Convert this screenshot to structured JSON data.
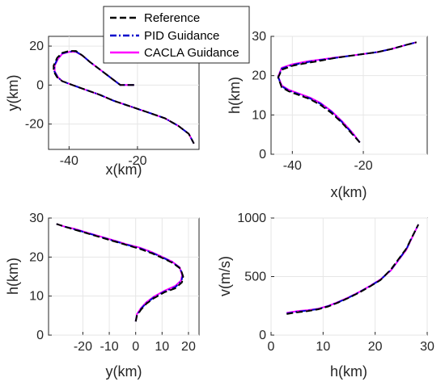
{
  "figure": {
    "legend": {
      "entries": [
        {
          "label": "Reference",
          "color": "#000000",
          "style": "dashed"
        },
        {
          "label": "PID Guidance",
          "color": "#0000cc",
          "style": "dashdot"
        },
        {
          "label": "CACLA Guidance",
          "color": "#ff00ff",
          "style": "solid"
        }
      ]
    }
  },
  "chart_data": [
    {
      "type": "line",
      "xlabel": "x(km)",
      "ylabel": "y(km)",
      "xlim": [
        -46,
        -2
      ],
      "ylim": [
        -33,
        25
      ],
      "xticks": [
        -40,
        -20
      ],
      "yticks": [
        -20,
        0,
        20
      ],
      "grid": true,
      "series": [
        {
          "name": "Reference",
          "x": [
            -21,
            -25,
            -28,
            -31,
            -34,
            -36,
            -38,
            -40,
            -42,
            -43.5,
            -44.5,
            -44.5,
            -43.5,
            -42,
            -39,
            -35,
            -31,
            -27,
            -22,
            -17,
            -12,
            -8,
            -5,
            -3.5
          ],
          "y": [
            0,
            0,
            4,
            8,
            12,
            15,
            17.5,
            17.5,
            16.5,
            14,
            10,
            7,
            4,
            2,
            0,
            -2.5,
            -5,
            -8,
            -11,
            -14,
            -17,
            -21,
            -25,
            -30
          ]
        },
        {
          "name": "PID Guidance",
          "x": [
            -21,
            -25,
            -28,
            -31,
            -34,
            -36,
            -38,
            -40,
            -42,
            -43.3,
            -44.3,
            -44.3,
            -43.3,
            -42,
            -39,
            -35,
            -31,
            -27,
            -22,
            -17,
            -12,
            -8,
            -5,
            -3.5
          ],
          "y": [
            0,
            0,
            4,
            8,
            12,
            15,
            17.2,
            17.2,
            16.2,
            13.8,
            10,
            7,
            4,
            2,
            0,
            -2.5,
            -5,
            -8,
            -11,
            -14,
            -17,
            -21,
            -25,
            -30
          ]
        },
        {
          "name": "CACLA Guidance",
          "x": [
            -21,
            -25,
            -28,
            -31,
            -34,
            -36,
            -38,
            -40,
            -42,
            -43.2,
            -44.2,
            -44.2,
            -43.2,
            -42,
            -39,
            -35,
            -31,
            -27,
            -22,
            -17,
            -12,
            -8,
            -5,
            -3.5
          ],
          "y": [
            0,
            0,
            4,
            8,
            12,
            15,
            17,
            17,
            16,
            13.5,
            10,
            7,
            4,
            2,
            0,
            -2.5,
            -5,
            -8,
            -11,
            -14,
            -17,
            -21,
            -25,
            -30
          ]
        }
      ]
    },
    {
      "type": "line",
      "xlabel": "x(km)",
      "ylabel": "h(km)",
      "xlim": [
        -46,
        -2
      ],
      "ylim": [
        0,
        30
      ],
      "xticks": [
        -40,
        -20
      ],
      "yticks": [
        0,
        10,
        20,
        30
      ],
      "grid": true,
      "series": [
        {
          "name": "Reference",
          "x": [
            -21,
            -23,
            -26,
            -29,
            -32,
            -35,
            -38,
            -41,
            -43,
            -44,
            -43,
            -40,
            -36,
            -32,
            -28,
            -24,
            -20,
            -16,
            -12,
            -8,
            -5
          ],
          "y": [
            3,
            5,
            8,
            10.5,
            12.5,
            14,
            15,
            16,
            17,
            19.5,
            21.5,
            22.5,
            23.2,
            23.8,
            24.5,
            25,
            25.5,
            26,
            26.8,
            27.8,
            28.5
          ]
        },
        {
          "name": "PID Guidance",
          "x": [
            -21,
            -23,
            -26,
            -29,
            -32,
            -35,
            -38,
            -41,
            -43,
            -44,
            -43,
            -40,
            -36,
            -32,
            -28,
            -24,
            -20,
            -16,
            -12,
            -8,
            -5
          ],
          "y": [
            3,
            5.2,
            8.2,
            10.8,
            12.8,
            14.2,
            15.2,
            16.2,
            17.3,
            19.6,
            21.8,
            22.7,
            23.4,
            24,
            24.5,
            25,
            25.5,
            26,
            26.8,
            27.8,
            28.5
          ]
        },
        {
          "name": "CACLA Guidance",
          "x": [
            -21,
            -23,
            -26,
            -29,
            -32,
            -35,
            -38,
            -41,
            -43,
            -44,
            -43,
            -40,
            -36,
            -32,
            -28,
            -24,
            -20,
            -16,
            -12,
            -8,
            -5
          ],
          "y": [
            3,
            5.4,
            8.4,
            11,
            13,
            14.4,
            15.4,
            16.4,
            17.5,
            19.8,
            22,
            22.9,
            23.6,
            24.1,
            24.6,
            25,
            25.5,
            26,
            26.8,
            27.8,
            28.5
          ]
        }
      ]
    },
    {
      "type": "line",
      "xlabel": "y(km)",
      "ylabel": "h(km)",
      "xlim": [
        -33,
        24
      ],
      "ylim": [
        0,
        30
      ],
      "xticks": [
        -20,
        -10,
        0,
        10,
        20
      ],
      "yticks": [
        0,
        10,
        20,
        30
      ],
      "grid": true,
      "series": [
        {
          "name": "Reference",
          "x": [
            0,
            0.5,
            2,
            4,
            7,
            11,
            15,
            17.5,
            18,
            17,
            14,
            10,
            6,
            2,
            -3,
            -8,
            -13,
            -18,
            -23,
            -27,
            -30
          ],
          "y": [
            3.5,
            5,
            6.5,
            8,
            9.5,
            11,
            12,
            13.5,
            15,
            17,
            18.5,
            19.8,
            21,
            22,
            23,
            24,
            25,
            26,
            27,
            27.8,
            28.5
          ]
        },
        {
          "name": "PID Guidance",
          "x": [
            0,
            0.5,
            2,
            4,
            7,
            11,
            15,
            17.3,
            17.8,
            16.8,
            13.8,
            9.8,
            5.8,
            1.8,
            -3,
            -8,
            -13,
            -18,
            -23,
            -27,
            -30
          ],
          "y": [
            3.5,
            5.2,
            6.7,
            8.2,
            9.7,
            11.2,
            12.3,
            13.8,
            15.2,
            17.2,
            18.7,
            20,
            21.2,
            22.2,
            23.1,
            24.1,
            25.1,
            26.1,
            27.1,
            27.8,
            28.5
          ]
        },
        {
          "name": "CACLA Guidance",
          "x": [
            0,
            0.5,
            2,
            4,
            7,
            11,
            15,
            17.2,
            17.6,
            16.6,
            13.6,
            9.6,
            5.6,
            1.6,
            -3,
            -8,
            -13,
            -18,
            -23,
            -27,
            -30
          ],
          "y": [
            3.5,
            5.4,
            6.9,
            8.4,
            9.9,
            11.4,
            12.6,
            14,
            15.4,
            17.4,
            18.9,
            20.2,
            21.4,
            22.4,
            23.2,
            24.2,
            25.2,
            26.2,
            27.2,
            27.8,
            28.5
          ]
        }
      ]
    },
    {
      "type": "line",
      "xlabel": "h(km)",
      "ylabel": "v(m/s)",
      "xlim": [
        0,
        30
      ],
      "ylim": [
        0,
        1000
      ],
      "xticks": [
        0,
        10,
        20,
        30
      ],
      "yticks": [
        0,
        500,
        1000
      ],
      "grid": true,
      "series": [
        {
          "name": "Reference",
          "x": [
            3,
            5,
            7,
            9,
            11,
            13,
            15,
            17,
            19,
            21,
            23,
            24.5,
            26,
            27,
            28.3
          ],
          "y": [
            180,
            195,
            205,
            220,
            245,
            280,
            320,
            365,
            415,
            470,
            560,
            650,
            740,
            830,
            945
          ]
        },
        {
          "name": "PID Guidance",
          "x": [
            3,
            5,
            7,
            9,
            11,
            13,
            15,
            17,
            19,
            21,
            23,
            24.5,
            26,
            27,
            28.3
          ],
          "y": [
            185,
            200,
            210,
            222,
            248,
            283,
            322,
            368,
            418,
            472,
            555,
            645,
            735,
            828,
            945
          ]
        },
        {
          "name": "CACLA Guidance",
          "x": [
            3,
            5,
            7,
            9,
            11,
            13,
            15,
            17,
            19,
            21,
            23,
            24.5,
            26,
            27,
            28.3
          ],
          "y": [
            190,
            205,
            213,
            225,
            250,
            285,
            325,
            370,
            420,
            475,
            552,
            640,
            730,
            825,
            945
          ]
        }
      ]
    }
  ]
}
